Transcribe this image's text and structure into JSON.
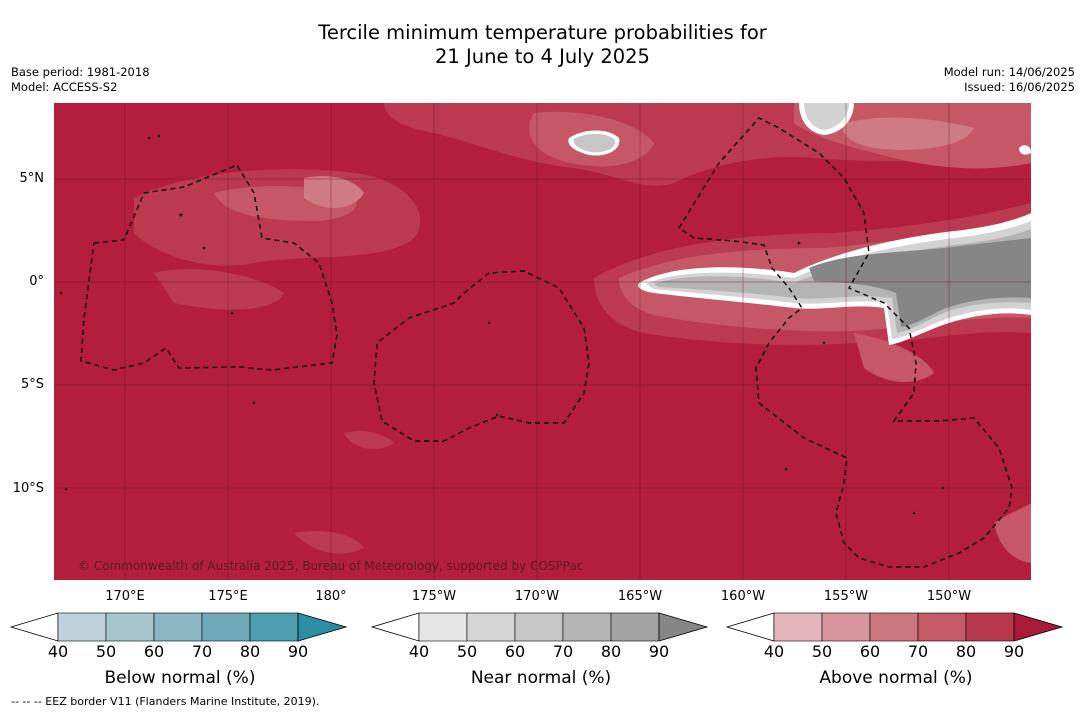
{
  "title": {
    "line1": "Tercile minimum temperature probabilities for",
    "line2": "21 June to 4 July 2025"
  },
  "meta": {
    "base_period": "Base period: 1981-2018",
    "model": "Model: ACCESS-S2",
    "model_run": "Model run: 14/06/2025",
    "issued": "Issued: 16/06/2025"
  },
  "map": {
    "lat_ticks": [
      "5°N",
      "0°",
      "5°S",
      "10°S"
    ],
    "lon_ticks": [
      "170°E",
      "175°E",
      "180°",
      "175°W",
      "170°W",
      "165°W",
      "160°W",
      "155°W",
      "150°W"
    ],
    "copyright": "© Commonwealth of Australia 2025, Bureau of Meteorology, supported by COSPPac",
    "colors": {
      "above_90": "#b31e3c",
      "above_80": "#bb3a50",
      "above_70": "#c65766",
      "above_60": "#cf7b85",
      "near_90": "#868686",
      "near_70": "#b4b4b4",
      "near_50": "#d3d3d3"
    }
  },
  "colorbars": [
    {
      "name": "below",
      "title": "Below normal (%)",
      "ticks": [
        "40",
        "50",
        "60",
        "70",
        "80",
        "90"
      ],
      "colors": [
        "#bdd2da",
        "#a7c7cf",
        "#8ab7c3",
        "#6eaab9",
        "#4c9daf",
        "#2c8ea5"
      ]
    },
    {
      "name": "near",
      "title": "Near normal (%)",
      "ticks": [
        "40",
        "50",
        "60",
        "70",
        "80",
        "90"
      ],
      "colors": [
        "#e5e5e5",
        "#d6d6d6",
        "#c6c6c6",
        "#b5b5b5",
        "#a3a3a3",
        "#868686"
      ]
    },
    {
      "name": "above",
      "title": "Above normal (%)",
      "ticks": [
        "40",
        "50",
        "60",
        "70",
        "80",
        "90"
      ],
      "colors": [
        "#e3b6be",
        "#d8959e",
        "#cc7780",
        "#c35a66",
        "#b8384c",
        "#a81a38"
      ]
    }
  ],
  "footnote": "--  --  -- EEZ border V11 (Flanders Marine Institute, 2019)."
}
